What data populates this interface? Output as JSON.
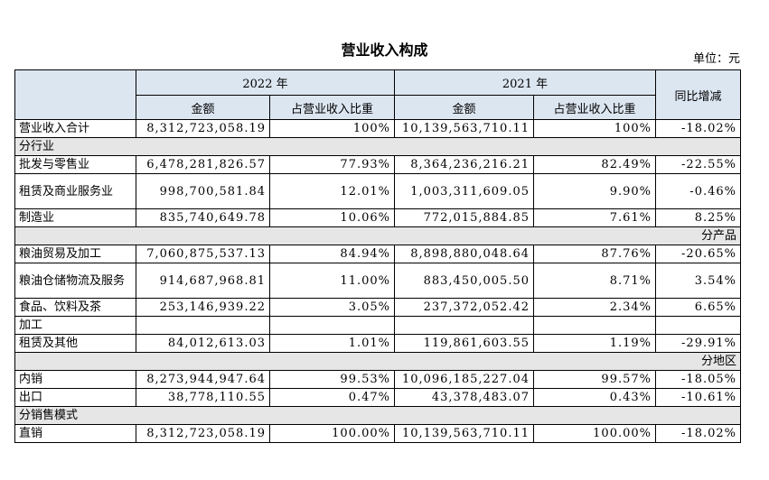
{
  "title": "营业收入构成",
  "unit": "单位：元",
  "headers": {
    "year_2022": "2022 年",
    "year_2021": "2021 年",
    "change": "同比增减",
    "amount": "金额",
    "share": "占营业收入比重"
  },
  "total": {
    "label": "营业收入合计",
    "v1": "8,312,723,058.19",
    "p1": "100%",
    "v2": "10,139,563,710.11",
    "p2": "100%",
    "chg": "-18.02%"
  },
  "sec_industry": "分行业",
  "industry": [
    {
      "label": "批发与零售业",
      "v1": "6,478,281,826.57",
      "p1": "77.93%",
      "v2": "8,364,236,216.21",
      "p2": "82.49%",
      "chg": "-22.55%"
    },
    {
      "label": "租赁及商业服务业",
      "v1": "998,700,581.84",
      "p1": "12.01%",
      "v2": "1,003,311,609.05",
      "p2": "9.90%",
      "chg": "-0.46%"
    },
    {
      "label": "制造业",
      "v1": "835,740,649.78",
      "p1": "10.06%",
      "v2": "772,015,884.85",
      "p2": "7.61%",
      "chg": "8.25%"
    }
  ],
  "sec_product": "分产品",
  "product": [
    {
      "label": "粮油贸易及加工",
      "v1": "7,060,875,537.13",
      "p1": "84.94%",
      "v2": "8,898,880,048.64",
      "p2": "87.76%",
      "chg": "-20.65%"
    },
    {
      "label": "粮油仓储物流及服务",
      "v1": "914,687,968.81",
      "p1": "11.00%",
      "v2": "883,450,005.50",
      "p2": "8.71%",
      "chg": "3.54%"
    },
    {
      "label": "食品、饮料及茶",
      "v1": "253,146,939.22",
      "p1": "3.05%",
      "v2": "237,372,052.42",
      "p2": "2.34%",
      "chg": "6.65%"
    },
    {
      "label": "加工"
    },
    {
      "label": "租赁及其他",
      "v1": "84,012,613.03",
      "p1": "1.01%",
      "v2": "119,861,603.55",
      "p2": "1.19%",
      "chg": "-29.91%"
    }
  ],
  "sec_region": "分地区",
  "region": [
    {
      "label": "内销",
      "v1": "8,273,944,947.64",
      "p1": "99.53%",
      "v2": "10,096,185,227.04",
      "p2": "99.57%",
      "chg": "-18.05%"
    },
    {
      "label": "出口",
      "v1": "38,778,110.55",
      "p1": "0.47%",
      "v2": "43,378,483.07",
      "p2": "0.43%",
      "chg": "-10.61%"
    }
  ],
  "sec_sales": "分销售模式",
  "sales": [
    {
      "label": "直销",
      "v1": "8,312,723,058.19",
      "p1": "100.00%",
      "v2": "10,139,563,710.11",
      "p2": "100.00%",
      "chg": "-18.02%"
    }
  ]
}
